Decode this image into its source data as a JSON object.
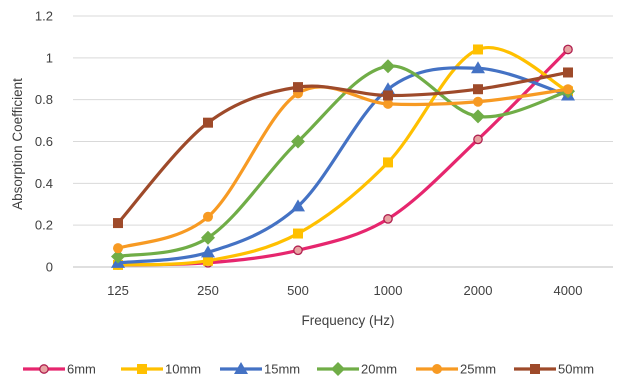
{
  "chart_data": {
    "type": "line",
    "title": "",
    "xlabel": "Frequency (Hz)",
    "ylabel": "Absorption Coefficient",
    "categories": [
      "125",
      "250",
      "500",
      "1000",
      "2000",
      "4000"
    ],
    "ylim": [
      0,
      1.2
    ],
    "yticks": [
      "0",
      "0.2",
      "0.4",
      "0.6",
      "0.8",
      "1",
      "1.2"
    ],
    "grid": true,
    "smooth": true,
    "legend_position": "bottom",
    "series": [
      {
        "name": "6mm",
        "color": "#e6266e",
        "marker": "circle",
        "values": [
          0.01,
          0.02,
          0.08,
          0.23,
          0.61,
          1.04
        ]
      },
      {
        "name": "10mm",
        "color": "#ffc000",
        "marker": "square",
        "values": [
          0.01,
          0.03,
          0.16,
          0.5,
          1.04,
          0.84
        ]
      },
      {
        "name": "15mm",
        "color": "#4472c4",
        "marker": "triangle",
        "values": [
          0.02,
          0.07,
          0.29,
          0.85,
          0.95,
          0.82
        ]
      },
      {
        "name": "20mm",
        "color": "#70ad47",
        "marker": "diamond",
        "values": [
          0.05,
          0.14,
          0.6,
          0.96,
          0.72,
          0.84
        ]
      },
      {
        "name": "25mm",
        "color": "#f79a23",
        "marker": "circle",
        "values": [
          0.09,
          0.24,
          0.83,
          0.78,
          0.79,
          0.85
        ]
      },
      {
        "name": "50mm",
        "color": "#9e4a2a",
        "marker": "square",
        "values": [
          0.21,
          0.69,
          0.86,
          0.82,
          0.85,
          0.93
        ]
      }
    ]
  }
}
